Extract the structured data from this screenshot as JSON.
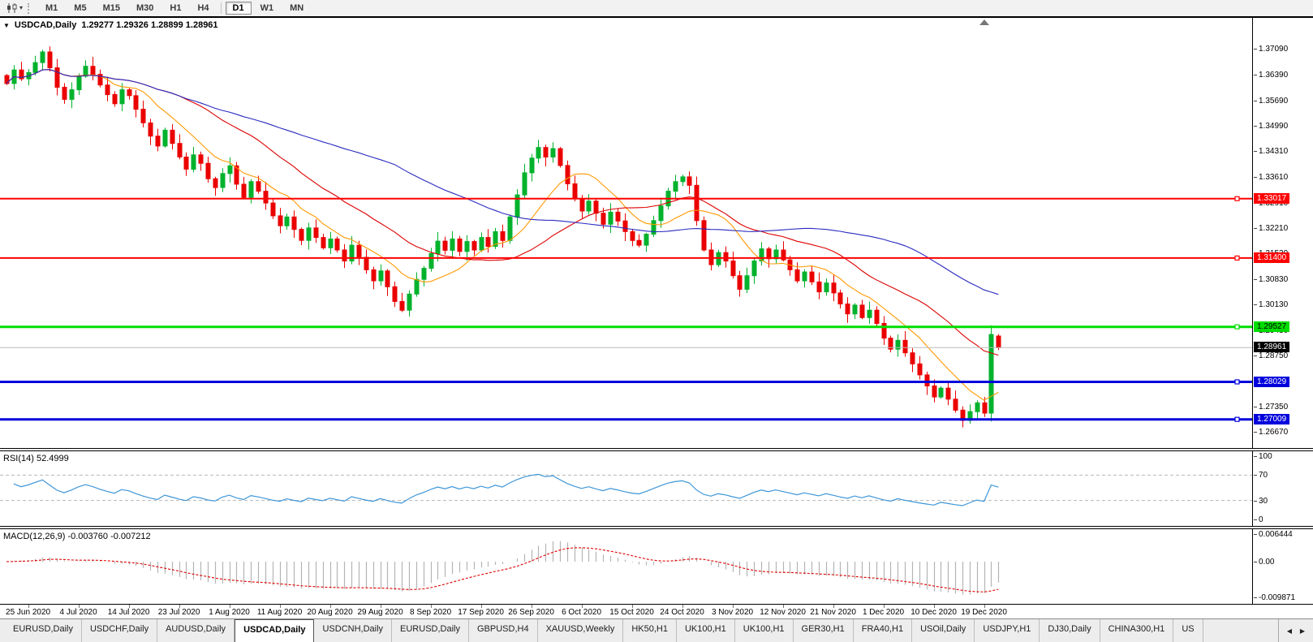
{
  "header": {
    "collapse_icon": "▼",
    "symbol": "USDCAD,Daily",
    "ohlc": "1.29277 1.29326 1.28899 1.28961"
  },
  "toolbar": {
    "timeframes": [
      "M1",
      "M5",
      "M15",
      "M30",
      "H1",
      "H4",
      "D1",
      "W1",
      "MN"
    ],
    "active": "D1"
  },
  "price_axis": {
    "ticks": [
      "1.37090",
      "1.36390",
      "1.35690",
      "1.34990",
      "1.34310",
      "1.33610",
      "1.32910",
      "1.32210",
      "1.31530",
      "1.30830",
      "1.30130",
      "1.29430",
      "1.28750",
      "1.28050",
      "1.27350",
      "1.26670"
    ]
  },
  "levels": [
    {
      "label": "1.33017",
      "price": 1.33017,
      "color": "#ff0000",
      "text_color": "#ffffff",
      "thickness": 2
    },
    {
      "label": "1.31400",
      "price": 1.314,
      "color": "#ff0000",
      "text_color": "#ffffff",
      "thickness": 2
    },
    {
      "label": "1.29527",
      "price": 1.29527,
      "color": "#00dd00",
      "text_color": "#000000",
      "thickness": 3
    },
    {
      "label": "1.28029",
      "price": 1.28029,
      "color": "#0000dd",
      "text_color": "#ffffff",
      "thickness": 3
    },
    {
      "label": "1.27009",
      "price": 1.27009,
      "color": "#0000dd",
      "text_color": "#ffffff",
      "thickness": 3
    }
  ],
  "current_price": {
    "label": "1.28961",
    "price": 1.28961,
    "line_color": "#bbbbbb",
    "bg": "#000000",
    "text_color": "#ffffff"
  },
  "rsi": {
    "label": "RSI(14) 52.4999",
    "axis_ticks": [
      "100",
      "70",
      "30",
      "0"
    ],
    "axis_values": [
      100,
      70,
      30,
      0
    ],
    "level_lines": [
      70,
      30
    ],
    "line_color": "#3e96d8"
  },
  "macd": {
    "label": "MACD(12,26,9) -0.003760 -0.007212",
    "axis_ticks": [
      "0.006444",
      "0.00",
      "-0.009871"
    ],
    "histogram_color": "#b4b4b4",
    "signal_color": "#e00000"
  },
  "date_axis": {
    "labels": [
      "25 Jun 2020",
      "4 Jul 2020",
      "14 Jul 2020",
      "23 Jul 2020",
      "1 Aug 2020",
      "11 Aug 2020",
      "20 Aug 2020",
      "29 Aug 2020",
      "8 Sep 2020",
      "17 Sep 2020",
      "26 Sep 2020",
      "6 Oct 2020",
      "15 Oct 2020",
      "24 Oct 2020",
      "3 Nov 2020",
      "12 Nov 2020",
      "21 Nov 2020",
      "1 Dec 2020",
      "10 Dec 2020",
      "19 Dec 2020"
    ]
  },
  "tab_bar": {
    "tabs": [
      "EURUSD,Daily",
      "USDCHF,Daily",
      "AUDUSD,Daily",
      "USDCAD,Daily",
      "USDCNH,Daily",
      "EURUSD,Daily",
      "GBPUSD,H4",
      "XAUUSD,Weekly",
      "HK50,H1",
      "UK100,H1",
      "UK100,H1",
      "GER30,H1",
      "FRA40,H1",
      "USOil,Daily",
      "USDJPY,H1",
      "DJ30,Daily",
      "CHINA300,H1"
    ],
    "active_index": 3,
    "clipped_tab": "US",
    "scroll_left_icon": "◀",
    "scroll_right_icon": "▶"
  },
  "colors": {
    "bull": "#00b22c",
    "bear": "#eb0000",
    "ma_fast": "#ff9900",
    "ma_mid": "#dd0000",
    "ma_slow": "#2a2ac0"
  },
  "chart_data": {
    "type": "candlestick",
    "title": "USDCAD,Daily",
    "symbol": "USDCAD",
    "timeframe": "Daily",
    "last_bar": {
      "open": 1.29277,
      "high": 1.29326,
      "low": 1.28899,
      "close": 1.28961
    },
    "price_range_top": 1.3785,
    "price_range_bottom": 1.2645,
    "y_axis_values": [
      1.3709,
      1.3639,
      1.3569,
      1.3499,
      1.3431,
      1.3361,
      1.3291,
      1.3221,
      1.3153,
      1.3083,
      1.3013,
      1.2943,
      1.2875,
      1.2805,
      1.2735,
      1.2667
    ],
    "horizontal_levels": [
      1.33017,
      1.314,
      1.29527,
      1.28029,
      1.27009
    ],
    "current_price": 1.28961,
    "moving_average_periods": [
      10,
      25,
      55
    ],
    "rsi_period": 14,
    "rsi_last": 52.4999,
    "macd_params": [
      12,
      26,
      9
    ],
    "macd_last": -0.00376,
    "macd_signal_last": -0.007212,
    "macd_axis_max": 0.006444,
    "macd_axis_min": -0.009871,
    "first_tick_bar": 3,
    "bars_per_tick": 7,
    "x_tick_labels": [
      "25 Jun 2020",
      "4 Jul 2020",
      "14 Jul 2020",
      "23 Jul 2020",
      "1 Aug 2020",
      "11 Aug 2020",
      "20 Aug 2020",
      "29 Aug 2020",
      "8 Sep 2020",
      "17 Sep 2020",
      "26 Sep 2020",
      "6 Oct 2020",
      "15 Oct 2020",
      "24 Oct 2020",
      "3 Nov 2020",
      "12 Nov 2020",
      "21 Nov 2020",
      "1 Dec 2020",
      "10 Dec 2020",
      "19 Dec 2020"
    ],
    "closes": [
      1.3615,
      1.3652,
      1.3628,
      1.3645,
      1.3672,
      1.3701,
      1.3658,
      1.3605,
      1.3572,
      1.3598,
      1.3635,
      1.3662,
      1.364,
      1.3611,
      1.3585,
      1.356,
      1.3598,
      1.3582,
      1.3545,
      1.3508,
      1.3472,
      1.3445,
      1.3488,
      1.3452,
      1.3415,
      1.3382,
      1.3421,
      1.3398,
      1.3356,
      1.3332,
      1.337,
      1.3391,
      1.3341,
      1.3305,
      1.3348,
      1.3322,
      1.329,
      1.3255,
      1.3228,
      1.3252,
      1.3218,
      1.3188,
      1.3222,
      1.3196,
      1.3168,
      1.3192,
      1.3162,
      1.3132,
      1.3175,
      1.3142,
      1.3108,
      1.3078,
      1.3105,
      1.3062,
      1.3022,
      1.2998,
      1.3042,
      1.3082,
      1.3112,
      1.3152,
      1.3186,
      1.3161,
      1.3192,
      1.3158,
      1.3185,
      1.3162,
      1.3196,
      1.3172,
      1.3212,
      1.3188,
      1.3252,
      1.3312,
      1.3372,
      1.3412,
      1.3441,
      1.3415,
      1.3438,
      1.3392,
      1.3342,
      1.3302,
      1.3268,
      1.3295,
      1.3262,
      1.3232,
      1.3265,
      1.3241,
      1.3212,
      1.3188,
      1.3175,
      1.3205,
      1.3242,
      1.3282,
      1.3322,
      1.3348,
      1.3361,
      1.3338,
      1.3242,
      1.3162,
      1.3122,
      1.3155,
      1.3132,
      1.3092,
      1.3055,
      1.3092,
      1.3132,
      1.3165,
      1.3138,
      1.3162,
      1.3135,
      1.3108,
      1.3078,
      1.3102,
      1.3075,
      1.3048,
      1.3072,
      1.3045,
      1.3015,
      1.2988,
      1.3012,
      1.2978,
      1.2998,
      1.2962,
      1.2922,
      1.2892,
      1.2916,
      1.2882,
      1.2852,
      1.2822,
      1.2792,
      1.2762,
      1.2786,
      1.2756,
      1.2726,
      1.2698,
      1.2722,
      1.2746,
      1.2718,
      1.2932,
      1.28961
    ]
  }
}
